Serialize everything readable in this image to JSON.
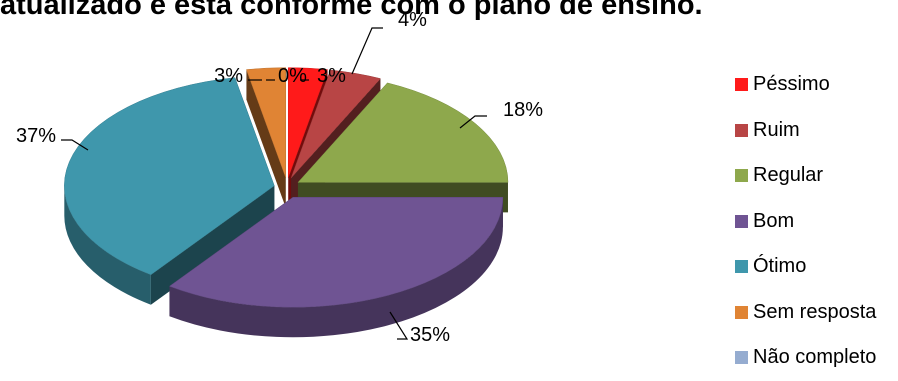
{
  "chart_data": {
    "type": "pie",
    "title": "atualizado e está conforme com o plano de ensino.",
    "legend_position": "right",
    "slices": [
      {
        "name": "Péssimo",
        "value": 3,
        "label": "3%",
        "color": "#ff1a1a"
      },
      {
        "name": "Ruim",
        "value": 4,
        "label": "4%",
        "color": "#b84545"
      },
      {
        "name": "Regular",
        "value": 18,
        "label": "18%",
        "color": "#8ea84c"
      },
      {
        "name": "Bom",
        "value": 35,
        "label": "35%",
        "color": "#6f5493"
      },
      {
        "name": "Ótimo",
        "value": 37,
        "label": "37%",
        "color": "#3f97ac"
      },
      {
        "name": "Sem resposta",
        "value": 3,
        "label": "3%",
        "color": "#e08434"
      },
      {
        "name": "Não completo",
        "value": 0,
        "label": "0%",
        "color": "#95acd0"
      }
    ]
  }
}
